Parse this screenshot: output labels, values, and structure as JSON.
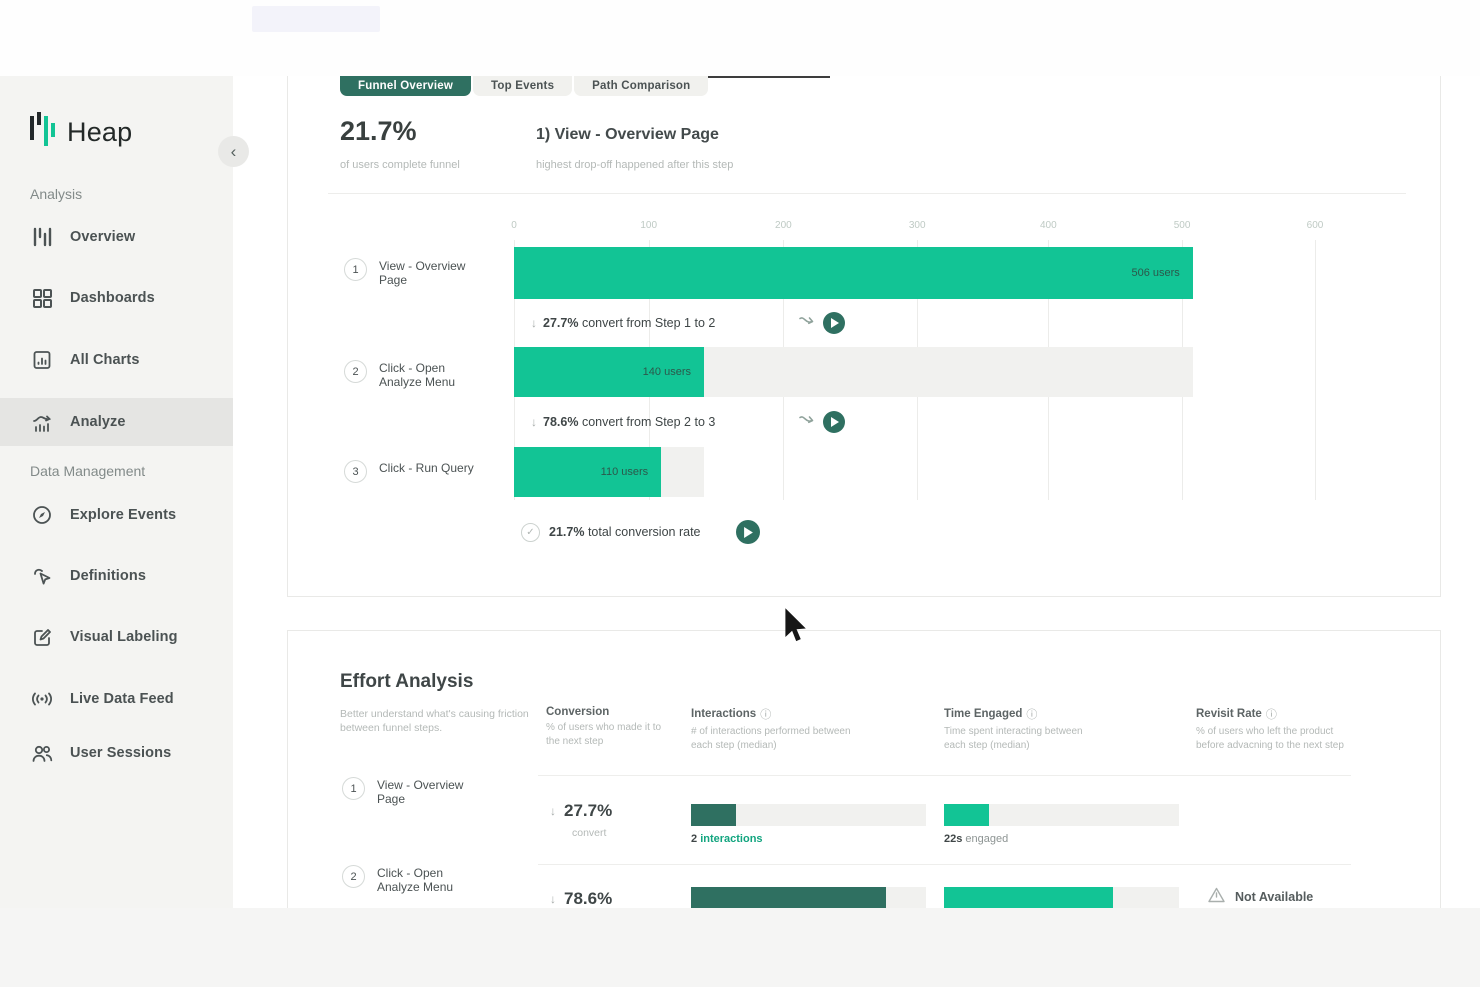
{
  "colors": {
    "green": "#12c495",
    "dark_green": "#2f7061"
  },
  "sidebar": {
    "brand": "Heap",
    "collapse_icon": "‹",
    "sections": [
      {
        "label": "Analysis",
        "items": [
          {
            "label": "Overview",
            "icon": "bars-icon"
          },
          {
            "label": "Dashboards",
            "icon": "grid-icon"
          },
          {
            "label": "All Charts",
            "icon": "chart-doc-icon"
          },
          {
            "label": "Analyze",
            "icon": "trend-icon",
            "active": true
          }
        ]
      },
      {
        "label": "Data Management",
        "items": [
          {
            "label": "Explore Events",
            "icon": "compass-icon"
          },
          {
            "label": "Definitions",
            "icon": "cursor-icon"
          },
          {
            "label": "Visual Labeling",
            "icon": "edit-icon"
          },
          {
            "label": "Live Data Feed",
            "icon": "broadcast-icon"
          },
          {
            "label": "User Sessions",
            "icon": "users-icon"
          }
        ]
      }
    ]
  },
  "tabs": [
    {
      "label": "Funnel Overview",
      "active": true
    },
    {
      "label": "Top Events",
      "active": false
    },
    {
      "label": "Path Comparison",
      "active": false
    }
  ],
  "funnel": {
    "summary_value": "21.7%",
    "summary_caption": "of users complete funnel",
    "step_highlight": "1) View - Overview Page",
    "step_highlight_caption": "highest drop-off happened after this step",
    "axis": {
      "ticks": [
        {
          "label": "0",
          "pct": 0
        },
        {
          "label": "100",
          "pct": 15.1
        },
        {
          "label": "200",
          "pct": 30.2
        },
        {
          "label": "300",
          "pct": 45.2
        },
        {
          "label": "400",
          "pct": 59.9
        },
        {
          "label": "500",
          "pct": 74.9
        },
        {
          "label": "600",
          "pct": 89.8
        }
      ]
    },
    "steps": [
      {
        "num": "1",
        "label": "View - Overview Page",
        "users_label": "506 users",
        "bar_pct": 76.1,
        "track_pct": 76.1
      },
      {
        "num": "2",
        "label": "Click - Open Analyze Menu",
        "users_label": "140 users",
        "bar_pct": 21.3,
        "track_pct": 76.1
      },
      {
        "num": "3",
        "label": "Click - Run Query",
        "users_label": "110 users",
        "bar_pct": 16.5,
        "track_pct": 21.3
      }
    ],
    "conversions": [
      {
        "pct": "27.7%",
        "text": "convert from Step 1 to 2"
      },
      {
        "pct": "78.6%",
        "text": "convert from Step 2 to 3"
      }
    ],
    "total": {
      "pct": "21.7%",
      "text": "total conversion rate"
    }
  },
  "chart_data": {
    "type": "bar",
    "title": "Funnel Overview",
    "categories": [
      "View - Overview Page",
      "Click - Open Analyze Menu",
      "Click - Run Query"
    ],
    "values": [
      506,
      140,
      110
    ],
    "xlabel": "users",
    "xlim": [
      0,
      663
    ],
    "x_ticks": [
      0,
      100,
      200,
      300,
      400,
      500,
      600
    ],
    "annotations": [
      "506 users",
      "140 users",
      "110 users",
      "27.7% convert from Step 1 to 2",
      "78.6% convert from Step 2 to 3",
      "21.7% total conversion rate"
    ]
  },
  "effort": {
    "title": "Effort Analysis",
    "subtitle": "Better understand what's causing friction between funnel steps.",
    "columns": [
      {
        "label": "Conversion",
        "desc": "% of users who made it to the next step",
        "info": false
      },
      {
        "label": "Interactions",
        "desc": "# of interactions performed between each step (median)",
        "info": true
      },
      {
        "label": "Time Engaged",
        "desc": "Time spent interacting between each step (median)",
        "info": true
      },
      {
        "label": "Revisit Rate",
        "desc": "% of users who left the product before advacning to the next step",
        "info": true
      }
    ],
    "info_icon": "ⓘ",
    "rows": [
      {
        "num": "1",
        "label": "View - Overview Page",
        "conv_pct": "27.7%",
        "conv_caption": "convert",
        "inter_bar_pct": 19,
        "inter_value": "2",
        "inter_label": "interactions",
        "time_bar_pct": 19,
        "time_value": "22s",
        "time_label": "engaged",
        "revisit_text": ""
      },
      {
        "num": "2",
        "label": "Click - Open Analyze Menu",
        "conv_pct": "78.6%",
        "conv_caption": "",
        "inter_bar_pct": 83,
        "inter_value": "",
        "inter_label": "",
        "time_bar_pct": 72,
        "time_value": "",
        "time_label": "",
        "revisit_text": "Not Available"
      }
    ]
  }
}
